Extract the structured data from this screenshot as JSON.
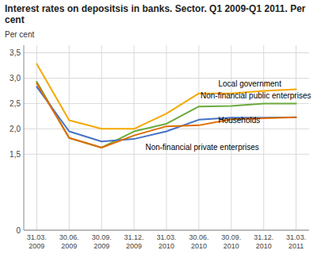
{
  "chart_data": {
    "type": "line",
    "title": "Interest rates on depositsis in banks. Sector. Q1 2009-Q1 2011. Per cent",
    "y_label": "Per cent",
    "categories": [
      "31.03.\n2009",
      "30.06.\n2009",
      "30.09.\n2009",
      "31.12.\n2009",
      "31.03.\n2010",
      "30.06.\n2010",
      "30.09.\n2010",
      "31.12.\n2010",
      "31.03.\n2011"
    ],
    "series": [
      {
        "color": "#f5a800",
        "values": [
          3.28,
          2.17,
          2.0,
          2.0,
          2.3,
          2.7,
          2.7,
          2.75,
          2.78
        ]
      },
      {
        "color": "#6aaa3a",
        "values": [
          2.93,
          1.82,
          1.63,
          1.95,
          2.1,
          2.44,
          2.45,
          2.5,
          2.5
        ]
      },
      {
        "color": "#4472c4",
        "values": [
          2.83,
          1.95,
          1.75,
          1.8,
          1.95,
          2.18,
          2.22,
          2.22,
          2.23
        ]
      },
      {
        "color": "#e06c00",
        "values": [
          2.9,
          1.82,
          1.63,
          1.87,
          2.05,
          2.07,
          2.19,
          2.21,
          2.23
        ]
      }
    ],
    "ylim": [
      0,
      3.65
    ],
    "yticks": [
      0,
      {
        "value": 1.5,
        "label": "1,5"
      },
      {
        "value": 2.0,
        "label": "2,0"
      },
      {
        "value": 2.5,
        "label": "2,5"
      },
      {
        "value": 3.0,
        "label": "3,0"
      },
      {
        "value": 3.5,
        "label": "3,5"
      }
    ],
    "annotations": [
      {
        "text": "Local government",
        "x": 5.6,
        "y": 2.83
      },
      {
        "text": "Non-financial public enterprises",
        "x": 5.05,
        "y": 2.6
      },
      {
        "text": "Households",
        "x": 5.6,
        "y": 2.12
      },
      {
        "text": "Non-financial private enterprises",
        "x": 3.35,
        "y": 1.58
      }
    ],
    "grid": true
  }
}
